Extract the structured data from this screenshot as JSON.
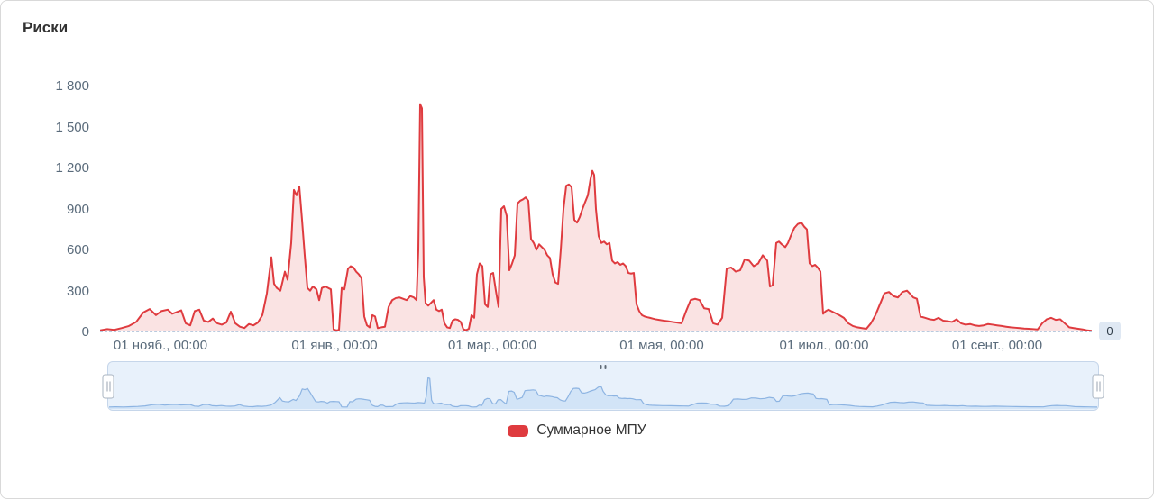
{
  "card": {
    "title": "Риски"
  },
  "legend": {
    "label": "Суммарное МПУ",
    "marker_color": "#df3b3f"
  },
  "current_value_badge": "0",
  "colors": {
    "series": "#df3b3f",
    "series_fill": "#fae3e3",
    "axis_label": "#5a6b7b",
    "badge_bg": "#dfe8f3",
    "nav_bg": "#e8f1fb",
    "nav_border": "#c6d6ea",
    "nav_line": "#8db4e2",
    "nav_fill": "#d2e4f7"
  },
  "chart_data": {
    "type": "area",
    "title": "Риски",
    "grid": "off",
    "legend_position": "bottom",
    "y_axis": {
      "min": 0,
      "max": 1800,
      "tick_interval": 300,
      "tick_labels": [
        "0",
        "300",
        "600",
        "900",
        "1 200",
        "1 500",
        "1 800"
      ]
    },
    "x_axis": {
      "type": "datetime",
      "range": [
        0,
        1100
      ],
      "ticks": [
        {
          "label": "01 нояб., 00:00",
          "position": 67
        },
        {
          "label": "01 янв., 00:00",
          "position": 260
        },
        {
          "label": "01 мар., 00:00",
          "position": 435
        },
        {
          "label": "01 мая, 00:00",
          "position": 623
        },
        {
          "label": "01 июл., 00:00",
          "position": 803
        },
        {
          "label": "01 сент., 00:00",
          "position": 995
        }
      ]
    },
    "series": [
      {
        "name": "Суммарное МПУ",
        "color": "#df3b3f",
        "points": [
          [
            0,
            8
          ],
          [
            8,
            18
          ],
          [
            16,
            12
          ],
          [
            24,
            25
          ],
          [
            32,
            40
          ],
          [
            40,
            70
          ],
          [
            48,
            140
          ],
          [
            55,
            165
          ],
          [
            62,
            120
          ],
          [
            68,
            150
          ],
          [
            75,
            160
          ],
          [
            80,
            130
          ],
          [
            90,
            155
          ],
          [
            95,
            60
          ],
          [
            100,
            45
          ],
          [
            105,
            150
          ],
          [
            110,
            160
          ],
          [
            115,
            80
          ],
          [
            120,
            70
          ],
          [
            125,
            95
          ],
          [
            130,
            60
          ],
          [
            135,
            50
          ],
          [
            140,
            65
          ],
          [
            145,
            145
          ],
          [
            150,
            60
          ],
          [
            155,
            35
          ],
          [
            160,
            25
          ],
          [
            165,
            55
          ],
          [
            170,
            45
          ],
          [
            175,
            65
          ],
          [
            180,
            120
          ],
          [
            185,
            280
          ],
          [
            190,
            545
          ],
          [
            193,
            350
          ],
          [
            196,
            320
          ],
          [
            200,
            300
          ],
          [
            205,
            440
          ],
          [
            208,
            380
          ],
          [
            212,
            650
          ],
          [
            215,
            1040
          ],
          [
            218,
            1000
          ],
          [
            221,
            1065
          ],
          [
            224,
            820
          ],
          [
            227,
            560
          ],
          [
            230,
            320
          ],
          [
            233,
            300
          ],
          [
            236,
            330
          ],
          [
            240,
            310
          ],
          [
            243,
            230
          ],
          [
            246,
            320
          ],
          [
            250,
            330
          ],
          [
            253,
            320
          ],
          [
            256,
            310
          ],
          [
            259,
            15
          ],
          [
            262,
            8
          ],
          [
            265,
            12
          ],
          [
            268,
            320
          ],
          [
            271,
            310
          ],
          [
            275,
            460
          ],
          [
            278,
            480
          ],
          [
            281,
            470
          ],
          [
            284,
            440
          ],
          [
            287,
            420
          ],
          [
            290,
            390
          ],
          [
            293,
            110
          ],
          [
            296,
            45
          ],
          [
            299,
            30
          ],
          [
            302,
            120
          ],
          [
            305,
            110
          ],
          [
            308,
            25
          ],
          [
            312,
            30
          ],
          [
            316,
            35
          ],
          [
            320,
            180
          ],
          [
            324,
            230
          ],
          [
            328,
            245
          ],
          [
            332,
            250
          ],
          [
            336,
            240
          ],
          [
            340,
            230
          ],
          [
            344,
            260
          ],
          [
            348,
            250
          ],
          [
            351,
            230
          ],
          [
            353,
            600
          ],
          [
            355,
            1670
          ],
          [
            357,
            1640
          ],
          [
            359,
            400
          ],
          [
            361,
            210
          ],
          [
            364,
            190
          ],
          [
            367,
            210
          ],
          [
            370,
            230
          ],
          [
            373,
            160
          ],
          [
            376,
            150
          ],
          [
            379,
            160
          ],
          [
            382,
            60
          ],
          [
            385,
            30
          ],
          [
            388,
            25
          ],
          [
            391,
            80
          ],
          [
            394,
            90
          ],
          [
            397,
            85
          ],
          [
            400,
            70
          ],
          [
            403,
            15
          ],
          [
            406,
            10
          ],
          [
            409,
            20
          ],
          [
            412,
            120
          ],
          [
            415,
            100
          ],
          [
            418,
            420
          ],
          [
            421,
            500
          ],
          [
            424,
            480
          ],
          [
            427,
            200
          ],
          [
            430,
            180
          ],
          [
            433,
            420
          ],
          [
            436,
            430
          ],
          [
            439,
            300
          ],
          [
            442,
            180
          ],
          [
            445,
            900
          ],
          [
            448,
            920
          ],
          [
            451,
            850
          ],
          [
            454,
            450
          ],
          [
            457,
            500
          ],
          [
            460,
            560
          ],
          [
            463,
            940
          ],
          [
            466,
            960
          ],
          [
            469,
            970
          ],
          [
            472,
            985
          ],
          [
            475,
            960
          ],
          [
            478,
            680
          ],
          [
            481,
            650
          ],
          [
            484,
            600
          ],
          [
            487,
            640
          ],
          [
            490,
            620
          ],
          [
            493,
            600
          ],
          [
            496,
            560
          ],
          [
            499,
            540
          ],
          [
            502,
            420
          ],
          [
            505,
            360
          ],
          [
            508,
            350
          ],
          [
            511,
            600
          ],
          [
            514,
            900
          ],
          [
            517,
            1070
          ],
          [
            520,
            1080
          ],
          [
            523,
            1060
          ],
          [
            526,
            820
          ],
          [
            529,
            800
          ],
          [
            532,
            840
          ],
          [
            535,
            900
          ],
          [
            538,
            950
          ],
          [
            541,
            1000
          ],
          [
            544,
            1120
          ],
          [
            546,
            1180
          ],
          [
            548,
            1150
          ],
          [
            550,
            900
          ],
          [
            553,
            700
          ],
          [
            556,
            650
          ],
          [
            559,
            660
          ],
          [
            562,
            640
          ],
          [
            565,
            650
          ],
          [
            568,
            520
          ],
          [
            571,
            500
          ],
          [
            574,
            510
          ],
          [
            577,
            490
          ],
          [
            580,
            500
          ],
          [
            583,
            480
          ],
          [
            586,
            430
          ],
          [
            589,
            425
          ],
          [
            592,
            430
          ],
          [
            595,
            200
          ],
          [
            598,
            150
          ],
          [
            601,
            120
          ],
          [
            604,
            110
          ],
          [
            607,
            105
          ],
          [
            610,
            100
          ],
          [
            613,
            95
          ],
          [
            616,
            90
          ],
          [
            620,
            85
          ],
          [
            625,
            80
          ],
          [
            630,
            75
          ],
          [
            635,
            70
          ],
          [
            640,
            65
          ],
          [
            645,
            60
          ],
          [
            650,
            150
          ],
          [
            655,
            230
          ],
          [
            660,
            240
          ],
          [
            665,
            230
          ],
          [
            670,
            170
          ],
          [
            675,
            165
          ],
          [
            680,
            60
          ],
          [
            685,
            50
          ],
          [
            690,
            100
          ],
          [
            695,
            460
          ],
          [
            700,
            470
          ],
          [
            705,
            440
          ],
          [
            710,
            450
          ],
          [
            715,
            530
          ],
          [
            720,
            520
          ],
          [
            725,
            480
          ],
          [
            730,
            500
          ],
          [
            735,
            560
          ],
          [
            740,
            520
          ],
          [
            743,
            330
          ],
          [
            746,
            340
          ],
          [
            750,
            650
          ],
          [
            753,
            660
          ],
          [
            756,
            640
          ],
          [
            760,
            620
          ],
          [
            763,
            650
          ],
          [
            766,
            700
          ],
          [
            770,
            760
          ],
          [
            774,
            790
          ],
          [
            778,
            800
          ],
          [
            781,
            770
          ],
          [
            784,
            750
          ],
          [
            787,
            500
          ],
          [
            790,
            480
          ],
          [
            793,
            490
          ],
          [
            796,
            470
          ],
          [
            799,
            440
          ],
          [
            802,
            130
          ],
          [
            805,
            150
          ],
          [
            808,
            160
          ],
          [
            811,
            150
          ],
          [
            814,
            140
          ],
          [
            817,
            130
          ],
          [
            820,
            120
          ],
          [
            825,
            100
          ],
          [
            830,
            60
          ],
          [
            835,
            40
          ],
          [
            840,
            30
          ],
          [
            845,
            25
          ],
          [
            850,
            20
          ],
          [
            855,
            60
          ],
          [
            860,
            120
          ],
          [
            865,
            200
          ],
          [
            870,
            280
          ],
          [
            875,
            290
          ],
          [
            880,
            260
          ],
          [
            885,
            250
          ],
          [
            890,
            290
          ],
          [
            895,
            300
          ],
          [
            898,
            280
          ],
          [
            902,
            250
          ],
          [
            906,
            240
          ],
          [
            910,
            110
          ],
          [
            915,
            100
          ],
          [
            920,
            90
          ],
          [
            925,
            85
          ],
          [
            930,
            100
          ],
          [
            935,
            80
          ],
          [
            940,
            75
          ],
          [
            945,
            70
          ],
          [
            950,
            90
          ],
          [
            955,
            60
          ],
          [
            960,
            50
          ],
          [
            965,
            55
          ],
          [
            970,
            45
          ],
          [
            975,
            40
          ],
          [
            980,
            45
          ],
          [
            985,
            55
          ],
          [
            990,
            50
          ],
          [
            995,
            45
          ],
          [
            1000,
            40
          ],
          [
            1005,
            35
          ],
          [
            1010,
            30
          ],
          [
            1015,
            28
          ],
          [
            1020,
            25
          ],
          [
            1025,
            22
          ],
          [
            1030,
            20
          ],
          [
            1035,
            18
          ],
          [
            1040,
            15
          ],
          [
            1045,
            60
          ],
          [
            1050,
            90
          ],
          [
            1055,
            100
          ],
          [
            1060,
            85
          ],
          [
            1065,
            90
          ],
          [
            1070,
            60
          ],
          [
            1075,
            30
          ],
          [
            1080,
            25
          ],
          [
            1085,
            20
          ],
          [
            1090,
            15
          ],
          [
            1095,
            8
          ],
          [
            1100,
            5
          ]
        ]
      }
    ]
  }
}
